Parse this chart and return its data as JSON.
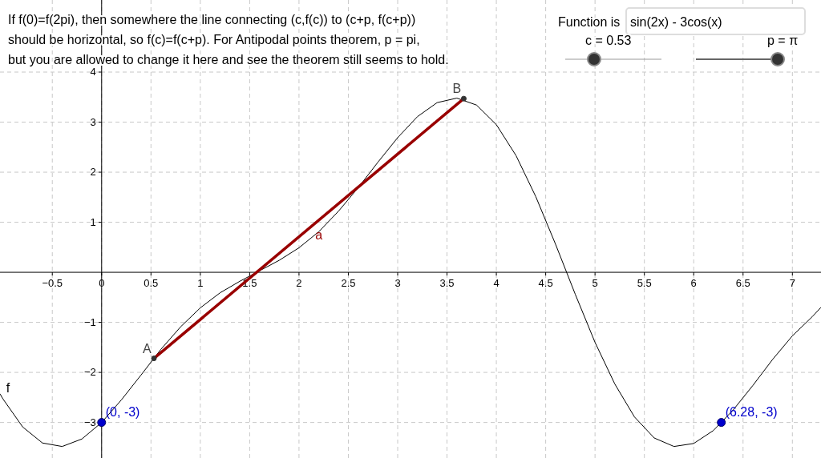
{
  "chart_data": {
    "type": "line",
    "xlim": [
      -1.03,
      7.29
    ],
    "ylim": [
      -3.71,
      5.44
    ],
    "xticks": [
      {
        "value": -0.5,
        "label": "−0.5"
      },
      0,
      0.5,
      1,
      1.5,
      2,
      2.5,
      3,
      3.5,
      4,
      4.5,
      5,
      5.5,
      6,
      6.5,
      7
    ],
    "yticks": [
      {
        "value": -3,
        "label": "−3"
      },
      {
        "value": -2,
        "label": "−2"
      },
      {
        "value": -1,
        "label": "−1"
      },
      1,
      2,
      3,
      4
    ],
    "grid": true,
    "annotations": [
      "If f(0)=f(2pi), then somewhere the line connecting (c,f(c)) to (c+p, f(c+p))",
      "should be horizontal, so f(c)=f(c+p).  For Antipodal points theorem, p = pi,",
      "but you are allowed to change it here and see the theorem still seems to hold.",
      "Function is",
      "sin(2x) - 3cos(x)",
      "c = 0.53",
      "p = π"
    ],
    "series": [
      {
        "name": "f",
        "color": "#000000",
        "x": [
          -1.03,
          -1,
          -0.8,
          -0.6,
          -0.4,
          -0.2,
          0,
          0.2,
          0.4,
          0.6,
          0.8,
          1,
          1.2,
          1.4,
          1.6,
          1.8,
          2,
          2.2,
          2.4,
          2.6,
          2.8,
          3,
          3.2,
          3.4,
          3.6,
          3.8,
          4,
          4.2,
          4.4,
          4.6,
          4.8,
          5,
          5.2,
          5.4,
          5.6,
          5.8,
          6,
          6.2,
          6.4,
          6.6,
          6.8,
          7,
          7.2,
          7.29
        ],
        "values": [
          -2.43,
          -2.53,
          -3.09,
          -3.41,
          -3.48,
          -3.33,
          -3,
          -2.55,
          -2.05,
          -1.54,
          -1.09,
          -0.71,
          -0.41,
          -0.18,
          0.03,
          0.24,
          0.49,
          0.81,
          1.22,
          1.69,
          2.2,
          2.69,
          3.11,
          3.39,
          3.48,
          3.34,
          2.95,
          2.33,
          1.51,
          0.56,
          -0.44,
          -1.4,
          -2.23,
          -2.89,
          -3.31,
          -3.48,
          -3.42,
          -3.16,
          -2.75,
          -2.26,
          -1.74,
          -1.27,
          -0.89,
          -0.7
        ]
      },
      {
        "name": "a",
        "type": "line",
        "color": "#990000",
        "x": [
          0.53,
          3.67
        ],
        "values": [
          -1.72,
          3.47
        ]
      },
      {
        "name": "A",
        "type": "scatter",
        "color": "#333333",
        "x": [
          0.53
        ],
        "values": [
          -1.72
        ]
      },
      {
        "name": "B",
        "type": "scatter",
        "color": "#333333",
        "x": [
          3.67
        ],
        "values": [
          3.47
        ]
      },
      {
        "type": "scatter",
        "color": "#0000cc",
        "x": [
          0,
          6.28
        ],
        "values": [
          -3,
          -3
        ],
        "value_labels": [
          "(0, -3)",
          "(6.28, -3)"
        ]
      }
    ]
  }
}
